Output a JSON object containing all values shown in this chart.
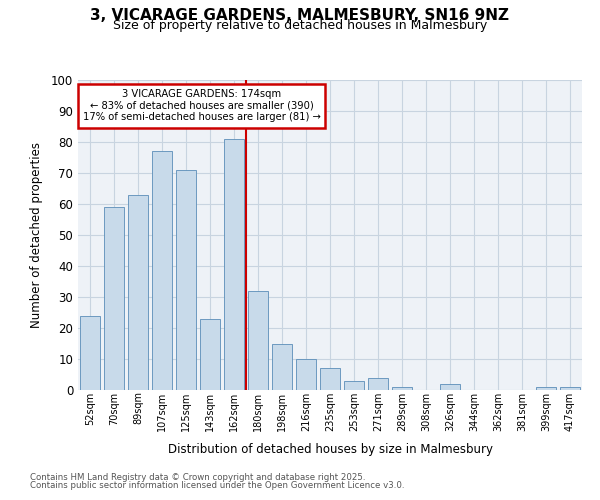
{
  "title": "3, VICARAGE GARDENS, MALMESBURY, SN16 9NZ",
  "subtitle": "Size of property relative to detached houses in Malmesbury",
  "xlabel": "Distribution of detached houses by size in Malmesbury",
  "ylabel": "Number of detached properties",
  "categories": [
    "52sqm",
    "70sqm",
    "89sqm",
    "107sqm",
    "125sqm",
    "143sqm",
    "162sqm",
    "180sqm",
    "198sqm",
    "216sqm",
    "235sqm",
    "253sqm",
    "271sqm",
    "289sqm",
    "308sqm",
    "326sqm",
    "344sqm",
    "362sqm",
    "381sqm",
    "399sqm",
    "417sqm"
  ],
  "values": [
    24,
    59,
    63,
    77,
    71,
    23,
    81,
    32,
    15,
    10,
    7,
    3,
    4,
    1,
    0,
    2,
    0,
    0,
    0,
    1,
    1
  ],
  "bar_color": "#c8daea",
  "bar_edge_color": "#5b8db8",
  "vline_x": 6.5,
  "vline_color": "#cc0000",
  "annotation_text": "3 VICARAGE GARDENS: 174sqm\n← 83% of detached houses are smaller (390)\n17% of semi-detached houses are larger (81) →",
  "annotation_box_color": "#cc0000",
  "ylim": [
    0,
    100
  ],
  "yticks": [
    0,
    10,
    20,
    30,
    40,
    50,
    60,
    70,
    80,
    90,
    100
  ],
  "background_color": "#eef2f7",
  "grid_color": "#c8d4e0",
  "footer_line1": "Contains HM Land Registry data © Crown copyright and database right 2025.",
  "footer_line2": "Contains public sector information licensed under the Open Government Licence v3.0.",
  "title_fontsize": 11,
  "subtitle_fontsize": 9
}
